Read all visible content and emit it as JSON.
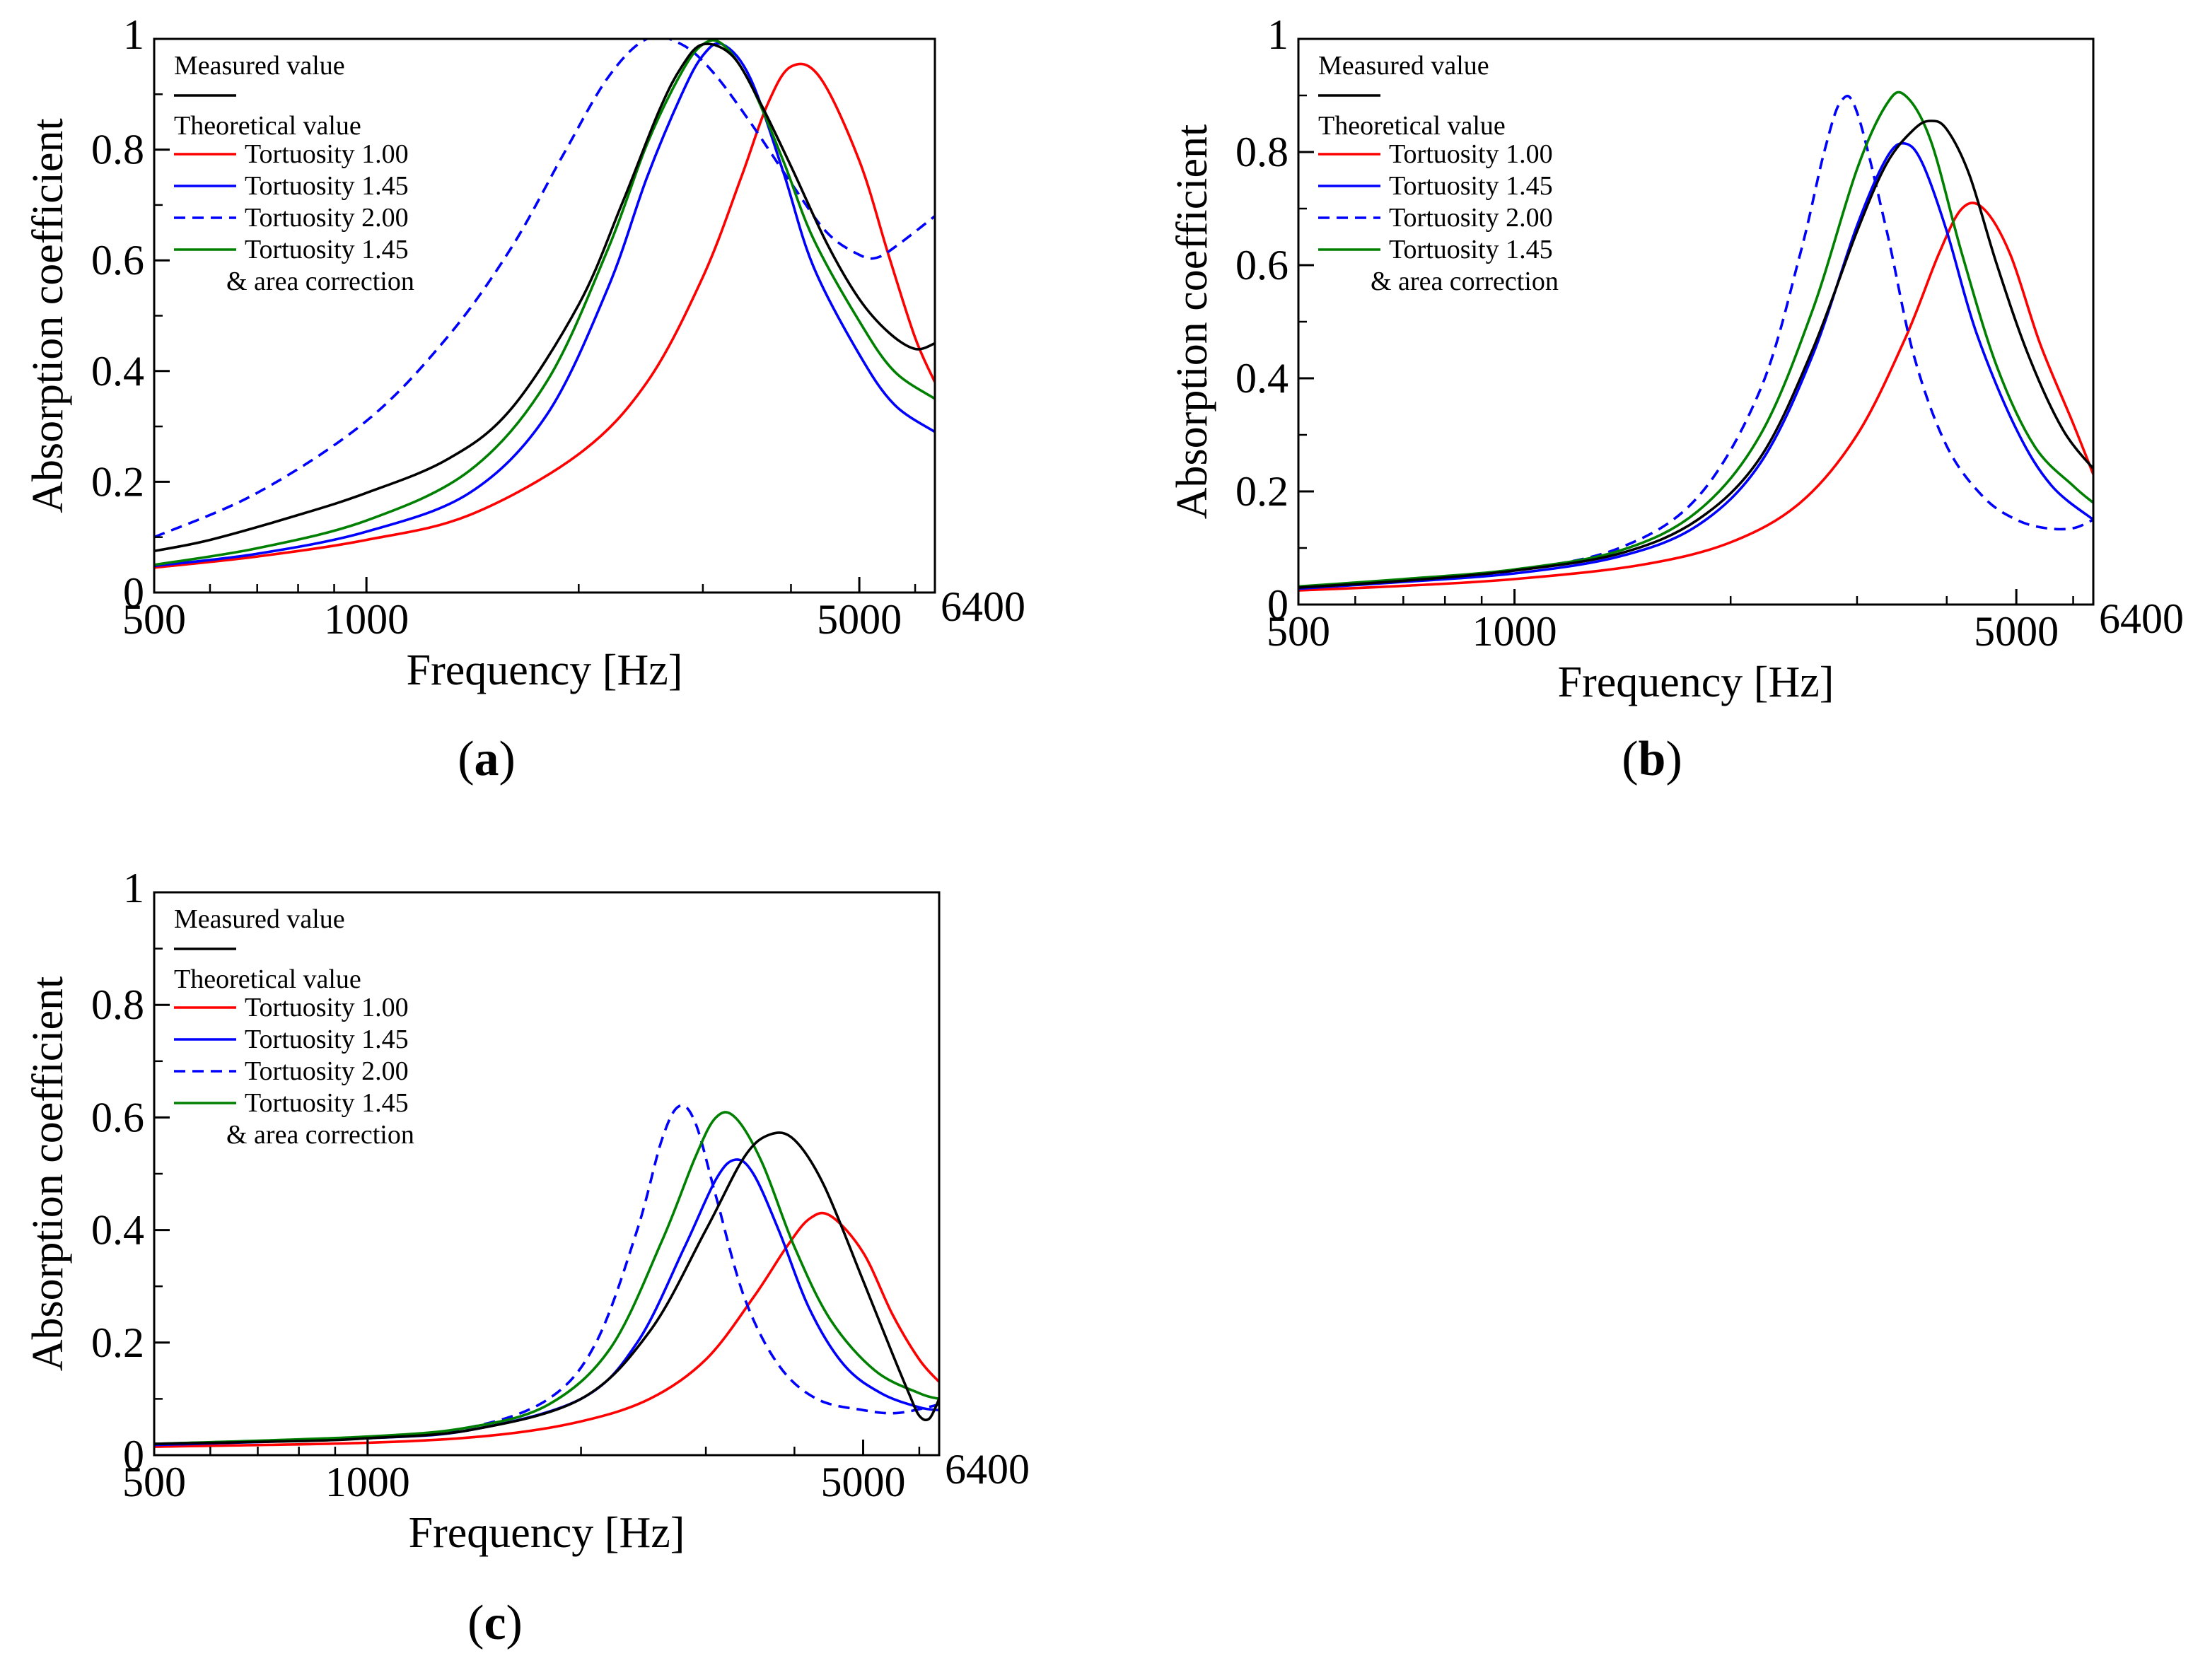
{
  "chart_data": [
    {
      "type": "line",
      "panel": "a",
      "panel_label": "a",
      "xlabel": "Frequency [Hz]",
      "ylabel": "Absorption coefficient",
      "xscale": "log",
      "xlim": [
        500,
        6400
      ],
      "ylim": [
        0,
        1
      ],
      "xticks": [
        500,
        1000,
        5000,
        6400
      ],
      "xtick_labels": [
        "500",
        "1000",
        "5000",
        "6400"
      ],
      "yticks": [
        0,
        0.2,
        0.4,
        0.6,
        0.8,
        1
      ],
      "ytick_labels": [
        "0",
        "0.2",
        "0.4",
        "0.6",
        "0.8",
        "1"
      ],
      "legend": {
        "measured_heading": "Measured value",
        "theoretical_heading": "Theoretical value",
        "note": "& area correction",
        "placement": "top-left"
      },
      "series": [
        {
          "name": "Measured value",
          "color": "#000000",
          "dash": "solid",
          "legend_label": "",
          "x": [
            500,
            600,
            800,
            1000,
            1300,
            1600,
            2000,
            2300,
            2600,
            2800,
            3000,
            3300,
            3600,
            4000,
            4500,
            5000,
            5500,
            6000,
            6400
          ],
          "y": [
            0.075,
            0.095,
            0.14,
            0.18,
            0.24,
            0.33,
            0.52,
            0.7,
            0.87,
            0.95,
            0.99,
            0.97,
            0.89,
            0.77,
            0.63,
            0.53,
            0.47,
            0.44,
            0.45
          ]
        },
        {
          "name": "Tortuosity 1.00",
          "color": "#ff0000",
          "dash": "solid",
          "legend_label": "Tortuosity 1.00",
          "x": [
            500,
            700,
            1000,
            1400,
            2000,
            2500,
            3000,
            3400,
            3700,
            4000,
            4400,
            5000,
            5500,
            6000,
            6400
          ],
          "y": [
            0.045,
            0.065,
            0.095,
            0.14,
            0.25,
            0.38,
            0.57,
            0.75,
            0.88,
            0.95,
            0.93,
            0.78,
            0.61,
            0.46,
            0.38
          ]
        },
        {
          "name": "Tortuosity 1.45",
          "color": "#0000ff",
          "dash": "solid",
          "legend_label": "Tortuosity 1.45",
          "x": [
            500,
            700,
            1000,
            1400,
            1800,
            2200,
            2500,
            2800,
            3000,
            3200,
            3500,
            3900,
            4300,
            5000,
            5600,
            6400
          ],
          "y": [
            0.048,
            0.07,
            0.11,
            0.18,
            0.32,
            0.55,
            0.75,
            0.9,
            0.97,
            0.99,
            0.93,
            0.76,
            0.59,
            0.43,
            0.34,
            0.29
          ]
        },
        {
          "name": "Tortuosity 2.00",
          "color": "#0000ff",
          "dash": "dashed",
          "legend_label": "Tortuosity 2.00",
          "x": [
            500,
            700,
            1000,
            1300,
            1600,
            1900,
            2200,
            2500,
            2800,
            3100,
            3500,
            4000,
            4500,
            5000,
            5300,
            5700,
            6400
          ],
          "y": [
            0.1,
            0.18,
            0.31,
            0.46,
            0.62,
            0.79,
            0.93,
            1.0,
            0.99,
            0.94,
            0.85,
            0.74,
            0.65,
            0.61,
            0.605,
            0.63,
            0.68
          ]
        },
        {
          "name": "Tortuosity 1.45 & area correction",
          "color": "#008000",
          "dash": "solid",
          "legend_label": "Tortuosity 1.45",
          "x": [
            500,
            700,
            1000,
            1400,
            1800,
            2200,
            2500,
            2800,
            3000,
            3200,
            3500,
            3900,
            4300,
            5000,
            5600,
            6400
          ],
          "y": [
            0.05,
            0.08,
            0.13,
            0.22,
            0.38,
            0.62,
            0.81,
            0.94,
            0.99,
            0.99,
            0.92,
            0.78,
            0.64,
            0.49,
            0.4,
            0.35
          ]
        }
      ]
    },
    {
      "type": "line",
      "panel": "b",
      "panel_label": "b",
      "xlabel": "Frequency [Hz]",
      "ylabel": "Absorption coefficient",
      "xscale": "log",
      "xlim": [
        500,
        6400
      ],
      "ylim": [
        0,
        1
      ],
      "xticks": [
        500,
        1000,
        5000,
        6400
      ],
      "xtick_labels": [
        "500",
        "1000",
        "5000",
        "6400"
      ],
      "yticks": [
        0,
        0.2,
        0.4,
        0.6,
        0.8,
        1
      ],
      "ytick_labels": [
        "0",
        "0.2",
        "0.4",
        "0.6",
        "0.8",
        "1"
      ],
      "legend": {
        "measured_heading": "Measured value",
        "theoretical_heading": "Theoretical value",
        "note": "& area correction",
        "placement": "top-left"
      },
      "series": [
        {
          "name": "Measured value",
          "color": "#000000",
          "dash": "solid",
          "legend_label": "",
          "x": [
            500,
            700,
            1000,
            1400,
            1800,
            2200,
            2600,
            3000,
            3300,
            3600,
            3800,
            4000,
            4300,
            4700,
            5200,
            5800,
            6400
          ],
          "y": [
            0.03,
            0.042,
            0.06,
            0.09,
            0.15,
            0.26,
            0.45,
            0.66,
            0.78,
            0.84,
            0.855,
            0.84,
            0.76,
            0.6,
            0.44,
            0.31,
            0.24
          ]
        },
        {
          "name": "Tortuosity 1.00",
          "color": "#ff0000",
          "dash": "solid",
          "legend_label": "Tortuosity 1.00",
          "x": [
            500,
            700,
            1000,
            1500,
            2000,
            2500,
            3000,
            3500,
            3900,
            4200,
            4500,
            4900,
            5400,
            6000,
            6400
          ],
          "y": [
            0.025,
            0.033,
            0.045,
            0.07,
            0.11,
            0.18,
            0.3,
            0.47,
            0.62,
            0.7,
            0.7,
            0.62,
            0.46,
            0.32,
            0.23
          ]
        },
        {
          "name": "Tortuosity 1.45",
          "color": "#0000ff",
          "dash": "solid",
          "legend_label": "Tortuosity 1.45",
          "x": [
            500,
            700,
            1000,
            1400,
            1800,
            2200,
            2600,
            3000,
            3300,
            3500,
            3700,
            4000,
            4400,
            5000,
            5600,
            6400
          ],
          "y": [
            0.028,
            0.04,
            0.055,
            0.085,
            0.14,
            0.25,
            0.44,
            0.67,
            0.79,
            0.815,
            0.78,
            0.66,
            0.48,
            0.31,
            0.21,
            0.15
          ]
        },
        {
          "name": "Tortuosity 2.00",
          "color": "#0000ff",
          "dash": "dashed",
          "legend_label": "Tortuosity 2.00",
          "x": [
            500,
            700,
            1000,
            1400,
            1800,
            2200,
            2500,
            2700,
            2850,
            3000,
            3300,
            3600,
            4000,
            4500,
            5000,
            5500,
            6000,
            6400
          ],
          "y": [
            0.03,
            0.042,
            0.06,
            0.1,
            0.19,
            0.38,
            0.62,
            0.8,
            0.89,
            0.87,
            0.66,
            0.44,
            0.28,
            0.19,
            0.15,
            0.135,
            0.135,
            0.15
          ]
        },
        {
          "name": "Tortuosity 1.45 & area correction",
          "color": "#008000",
          "dash": "solid",
          "legend_label": "Tortuosity 1.45",
          "x": [
            500,
            700,
            1000,
            1400,
            1800,
            2200,
            2600,
            3000,
            3300,
            3500,
            3800,
            4200,
            4700,
            5300,
            6000,
            6400
          ],
          "y": [
            0.032,
            0.045,
            0.062,
            0.095,
            0.165,
            0.3,
            0.52,
            0.77,
            0.885,
            0.9,
            0.82,
            0.62,
            0.42,
            0.28,
            0.21,
            0.18
          ]
        }
      ]
    },
    {
      "type": "line",
      "panel": "c",
      "panel_label": "c",
      "xlabel": "Frequency [Hz]",
      "ylabel": "Absorption coefficient",
      "xscale": "log",
      "xlim": [
        500,
        6400
      ],
      "ylim": [
        0,
        1
      ],
      "xticks": [
        500,
        1000,
        5000,
        6400
      ],
      "xtick_labels": [
        "500",
        "1000",
        "5000",
        "6400"
      ],
      "yticks": [
        0,
        0.2,
        0.4,
        0.6,
        0.8,
        1
      ],
      "ytick_labels": [
        "0",
        "0.2",
        "0.4",
        "0.6",
        "0.8",
        "1"
      ],
      "legend": {
        "measured_heading": "Measured value",
        "theoretical_heading": "Theoretical value",
        "note": "& area correction",
        "placement": "top-left"
      },
      "series": [
        {
          "name": "Measured value",
          "color": "#000000",
          "dash": "solid",
          "legend_label": "",
          "x": [
            500,
            800,
            1000,
            1400,
            2000,
            2500,
            3000,
            3400,
            3700,
            4000,
            4400,
            5000,
            5500,
            5800,
            6000,
            6200,
            6400
          ],
          "y": [
            0.02,
            0.025,
            0.03,
            0.045,
            0.1,
            0.22,
            0.4,
            0.53,
            0.57,
            0.56,
            0.48,
            0.31,
            0.18,
            0.11,
            0.07,
            0.065,
            0.1
          ]
        },
        {
          "name": "Tortuosity 1.00",
          "color": "#ff0000",
          "dash": "solid",
          "legend_label": "Tortuosity 1.00",
          "x": [
            500,
            1000,
            1500,
            2000,
            2500,
            3000,
            3500,
            3900,
            4200,
            4500,
            5000,
            5500,
            6000,
            6400
          ],
          "y": [
            0.015,
            0.022,
            0.035,
            0.06,
            0.1,
            0.17,
            0.28,
            0.37,
            0.42,
            0.425,
            0.36,
            0.25,
            0.17,
            0.13
          ]
        },
        {
          "name": "Tortuosity 1.45",
          "color": "#0000ff",
          "dash": "solid",
          "legend_label": "Tortuosity 1.45",
          "x": [
            500,
            1000,
            1400,
            2000,
            2400,
            2800,
            3100,
            3300,
            3500,
            3800,
            4200,
            4700,
            5300,
            6000,
            6400
          ],
          "y": [
            0.018,
            0.03,
            0.045,
            0.1,
            0.2,
            0.37,
            0.49,
            0.525,
            0.5,
            0.4,
            0.26,
            0.16,
            0.11,
            0.085,
            0.08
          ]
        },
        {
          "name": "Tortuosity 2.00",
          "color": "#0000ff",
          "dash": "dashed",
          "legend_label": "Tortuosity 2.00",
          "x": [
            500,
            1000,
            1400,
            1800,
            2100,
            2400,
            2600,
            2750,
            2900,
            3100,
            3400,
            3800,
            4300,
            5000,
            5600,
            6400
          ],
          "y": [
            0.02,
            0.032,
            0.05,
            0.1,
            0.2,
            0.4,
            0.56,
            0.62,
            0.59,
            0.46,
            0.28,
            0.16,
            0.1,
            0.08,
            0.075,
            0.09
          ]
        },
        {
          "name": "Tortuosity 1.45 & area correction",
          "color": "#008000",
          "dash": "solid",
          "legend_label": "Tortuosity 1.45",
          "x": [
            500,
            1000,
            1400,
            1800,
            2200,
            2600,
            2900,
            3100,
            3300,
            3600,
            4000,
            4500,
            5200,
            6000,
            6400
          ],
          "y": [
            0.02,
            0.033,
            0.05,
            0.09,
            0.19,
            0.38,
            0.53,
            0.6,
            0.6,
            0.52,
            0.37,
            0.24,
            0.15,
            0.11,
            0.1
          ]
        }
      ]
    }
  ]
}
